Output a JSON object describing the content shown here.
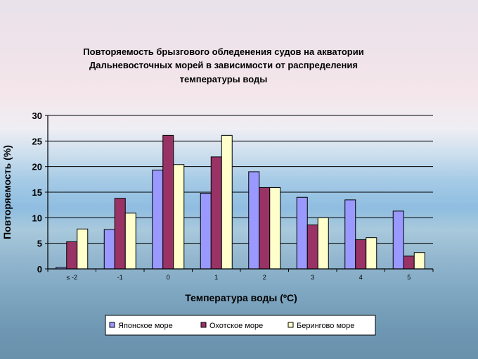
{
  "chart_data": {
    "type": "bar",
    "title": [
      "Повторяемость брызгового обледенения судов на акватории",
      "Дальневосточных морей в зависимости от распределения",
      "температуры воды"
    ],
    "xlabel": "Температура воды (ºС)",
    "ylabel": "Повторяемость (%)",
    "categories": [
      "≤ -2",
      "-1",
      "0",
      "1",
      "2",
      "3",
      "4",
      "5"
    ],
    "ylim": [
      0,
      30
    ],
    "yticks": [
      0,
      5,
      10,
      15,
      20,
      25,
      30
    ],
    "grid": true,
    "legend_position": "bottom",
    "series": [
      {
        "name": "Японское море",
        "color": "#9999ff",
        "values": [
          0.3,
          7.7,
          19.3,
          14.8,
          19.0,
          14.0,
          13.5,
          11.3
        ]
      },
      {
        "name": "Охотское море",
        "color": "#993366",
        "values": [
          5.3,
          13.8,
          26.1,
          21.9,
          15.9,
          8.6,
          5.7,
          2.5
        ]
      },
      {
        "name": "Берингово море",
        "color": "#ffffcc",
        "values": [
          7.8,
          10.9,
          20.4,
          26.1,
          15.9,
          10.0,
          6.1,
          3.2
        ]
      }
    ]
  }
}
